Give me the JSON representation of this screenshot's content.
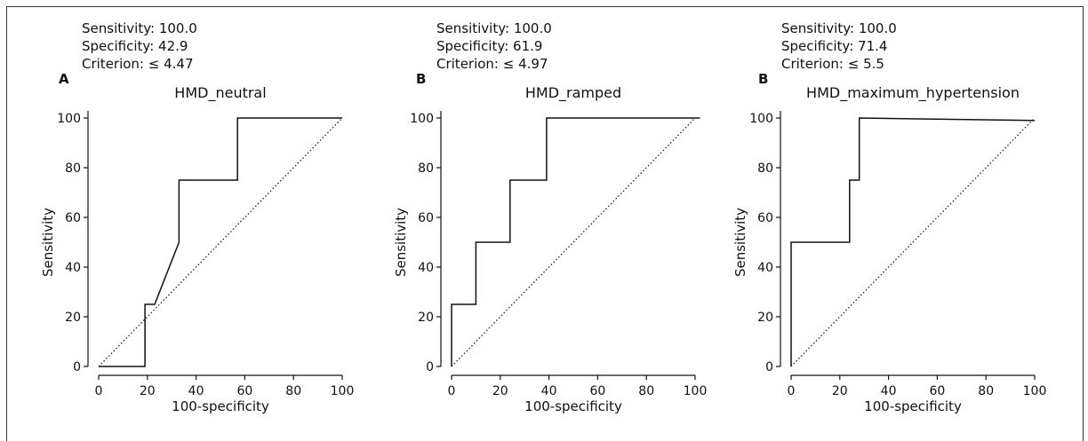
{
  "chart_data": [
    {
      "type": "line",
      "panel_letter": "A",
      "title": "HMD_neutral",
      "stats": {
        "sensitivity": "Sensitivity: 100.0",
        "specificity": "Specificity: 42.9",
        "criterion": "Criterion: ≤ 4.47"
      },
      "xlabel": "100-specificity",
      "ylabel": "Sensitivity",
      "xlim": [
        0,
        100
      ],
      "ylim": [
        0,
        100
      ],
      "xticks": [
        "0",
        "20",
        "40",
        "60",
        "80",
        "100"
      ],
      "yticks": [
        "0",
        "20",
        "40",
        "60",
        "80",
        "100"
      ],
      "grid": false,
      "series": [
        {
          "x": [
            0,
            19,
            19,
            23,
            33,
            33,
            57,
            57,
            100
          ],
          "y": [
            0,
            0,
            25,
            25,
            50,
            75,
            75,
            100,
            100
          ]
        }
      ],
      "reference_line": {
        "x": [
          0,
          100
        ],
        "y": [
          0,
          100
        ]
      }
    },
    {
      "type": "line",
      "panel_letter": "B",
      "title": "HMD_ramped",
      "stats": {
        "sensitivity": "Sensitivity: 100.0",
        "specificity": "Specificity: 61.9",
        "criterion": "Criterion: ≤ 4.97"
      },
      "xlabel": "100-specificity",
      "ylabel": "Sensitivity",
      "xlim": [
        0,
        100
      ],
      "ylim": [
        0,
        100
      ],
      "xticks": [
        "0",
        "20",
        "40",
        "60",
        "80",
        "100"
      ],
      "yticks": [
        "0",
        "20",
        "40",
        "60",
        "80",
        "100"
      ],
      "grid": false,
      "series": [
        {
          "x": [
            0,
            0,
            10,
            10,
            24,
            24,
            39,
            39,
            102
          ],
          "y": [
            0,
            25,
            25,
            50,
            50,
            75,
            75,
            100,
            100
          ]
        }
      ],
      "reference_line": {
        "x": [
          0,
          100
        ],
        "y": [
          0,
          100
        ]
      }
    },
    {
      "type": "line",
      "panel_letter": "B",
      "title": "HMD_maximum_hypertension",
      "stats": {
        "sensitivity": "Sensitivity: 100.0",
        "specificity": "Specificity: 71.4",
        "criterion": "Criterion: ≤ 5.5"
      },
      "xlabel": "100-specificity",
      "ylabel": "Sensitivity",
      "xlim": [
        0,
        100
      ],
      "ylim": [
        0,
        100
      ],
      "xticks": [
        "0",
        "20",
        "40",
        "60",
        "80",
        "100"
      ],
      "yticks": [
        "0",
        "20",
        "40",
        "60",
        "80",
        "100"
      ],
      "grid": false,
      "series": [
        {
          "x": [
            0,
            0,
            24,
            24,
            28,
            28,
            100
          ],
          "y": [
            0,
            50,
            50,
            75,
            75,
            100,
            99
          ]
        }
      ],
      "reference_line": {
        "x": [
          0,
          100
        ],
        "y": [
          0,
          100
        ]
      }
    }
  ]
}
